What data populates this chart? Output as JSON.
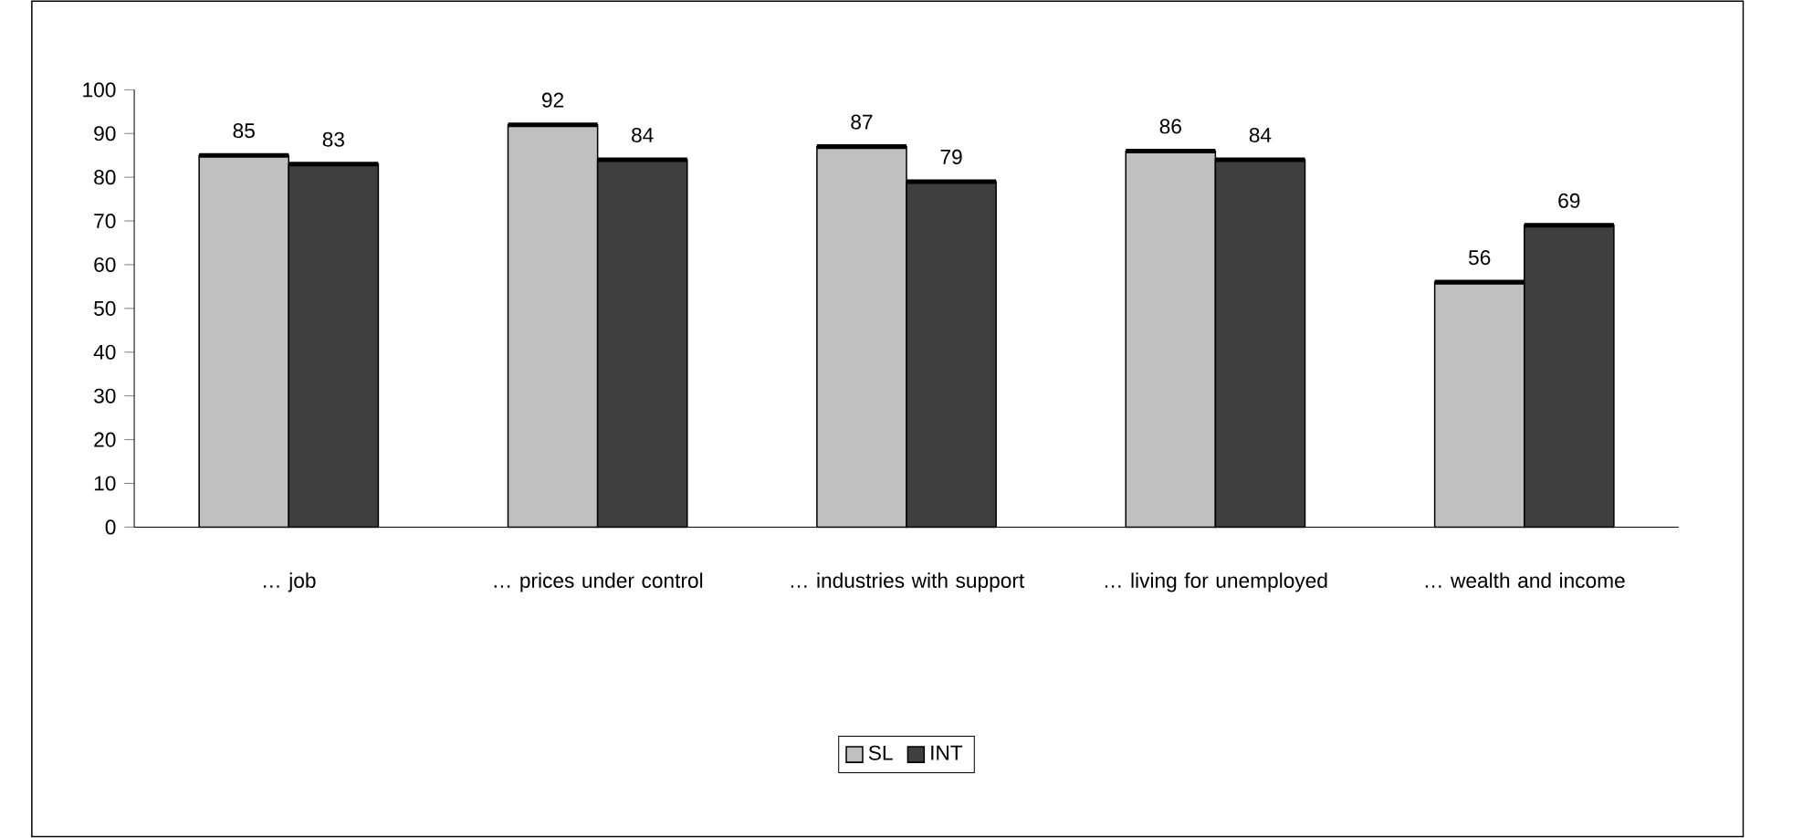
{
  "chart_data": {
    "type": "bar",
    "categories": [
      "… job",
      "… prices under control",
      "… industries with support",
      "… living for unemployed",
      "… wealth and income"
    ],
    "series": [
      {
        "name": "SL",
        "color": "#c0c0c0",
        "values": [
          85,
          92,
          87,
          86,
          56
        ]
      },
      {
        "name": "INT",
        "color": "#3f3f3f",
        "values": [
          83,
          84,
          79,
          84,
          69
        ]
      }
    ],
    "ylim": [
      0,
      100
    ],
    "yticks": [
      0,
      10,
      20,
      30,
      40,
      50,
      60,
      70,
      80,
      90,
      100
    ],
    "data_labels": true,
    "legend": "bottom"
  }
}
